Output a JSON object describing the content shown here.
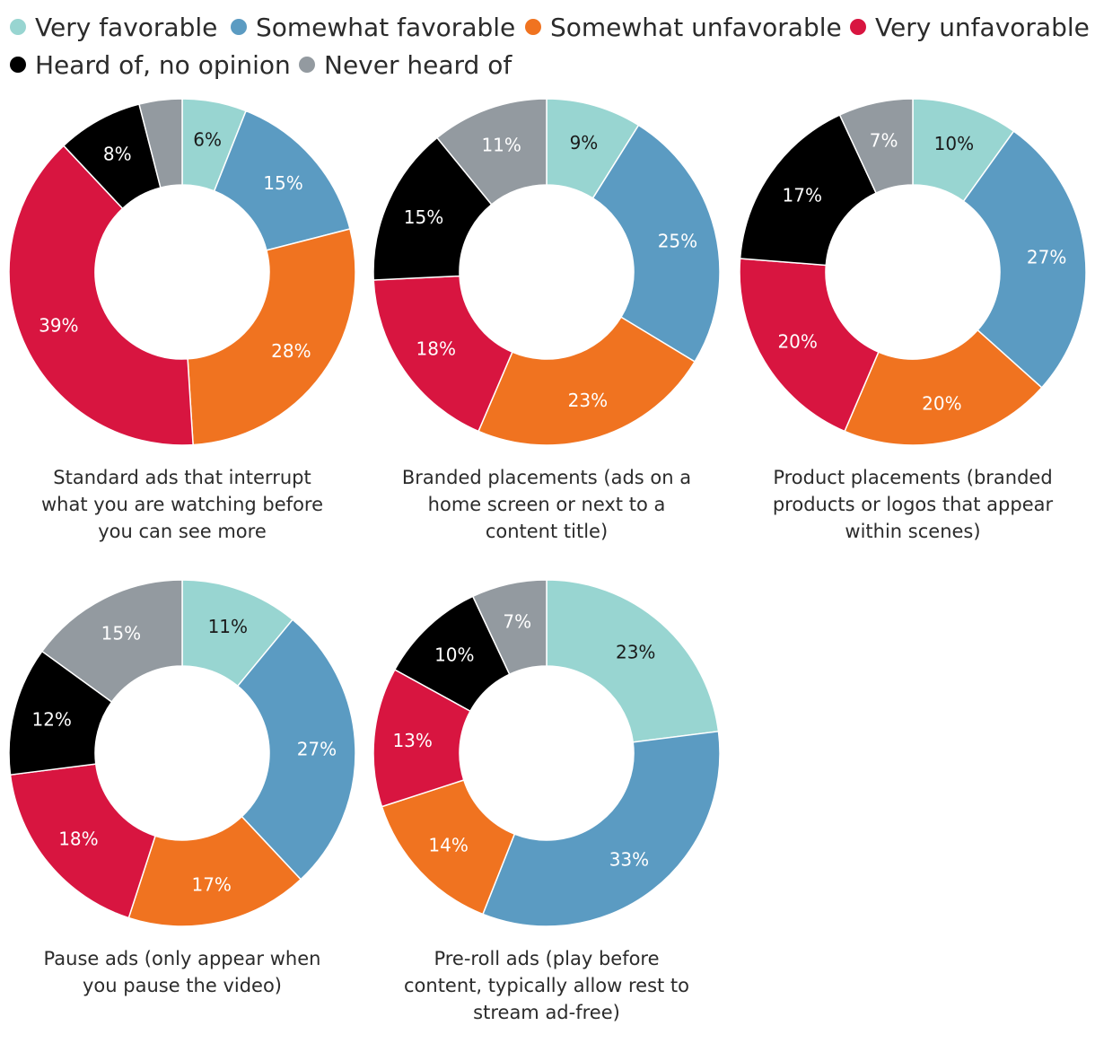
{
  "chart_data": {
    "type": "pie",
    "variant": "donut",
    "legend": {
      "placement": "top",
      "entries": [
        {
          "label": "Very favorable",
          "color": "#98d5d1"
        },
        {
          "label": "Somewhat favorable",
          "color": "#5b9bc2"
        },
        {
          "label": "Somewhat unfavorable",
          "color": "#f07320"
        },
        {
          "label": "Very unfavorable",
          "color": "#d81540"
        },
        {
          "label": "Heard of, no opinion",
          "color": "#000000"
        },
        {
          "label": "Never heard of",
          "color": "#939aa0"
        }
      ]
    },
    "charts": [
      {
        "caption": [
          "Standard ads that interrupt",
          "what you are watching before",
          "you can see more"
        ],
        "values": [
          6,
          15,
          28,
          39,
          8,
          4
        ],
        "labels": [
          "6%",
          "15%",
          "28%",
          "39%",
          "8%",
          ""
        ]
      },
      {
        "caption": [
          "Branded placements (ads on a",
          "home screen or next to a",
          "content title)"
        ],
        "values": [
          9,
          25,
          23,
          18,
          15,
          11
        ],
        "labels": [
          "9%",
          "25%",
          "23%",
          "18%",
          "15%",
          "11%"
        ]
      },
      {
        "caption": [
          "Product placements (branded",
          "products or logos that appear",
          "within scenes)"
        ],
        "values": [
          10,
          27,
          20,
          20,
          17,
          7
        ],
        "labels": [
          "10%",
          "27%",
          "20%",
          "20%",
          "17%",
          "7%"
        ]
      },
      {
        "caption": [
          "Pause ads (only appear when",
          "you pause the video)"
        ],
        "values": [
          11,
          27,
          17,
          18,
          12,
          15
        ],
        "labels": [
          "11%",
          "27%",
          "17%",
          "18%",
          "12%",
          "15%"
        ]
      },
      {
        "caption": [
          "Pre-roll ads (play before",
          "content, typically allow rest to",
          "stream ad-free)"
        ],
        "values": [
          23,
          33,
          14,
          13,
          10,
          7
        ],
        "labels": [
          "23%",
          "33%",
          "14%",
          "13%",
          "10%",
          "7%"
        ]
      }
    ]
  }
}
